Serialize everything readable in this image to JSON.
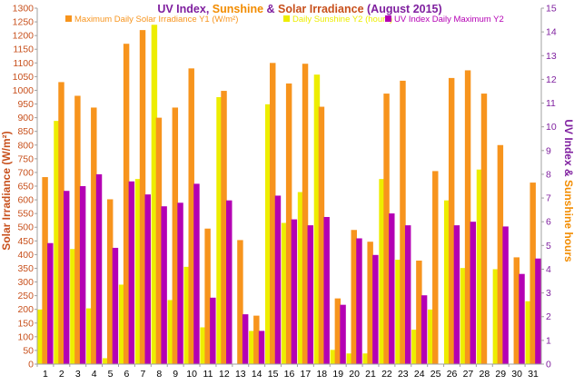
{
  "chart_data": {
    "type": "bar",
    "title_parts": [
      {
        "text": "UV Index",
        "color": "#7f1f9f"
      },
      {
        "text": ", ",
        "color": "#7f1f9f"
      },
      {
        "text": "Sunshine",
        "color": "#f28c00"
      },
      {
        "text": " & ",
        "color": "#7f1f9f"
      },
      {
        "text": "Solar Irradiance",
        "color": "#c8501c"
      },
      {
        "text": " (August 2015)",
        "color": "#7f1f9f"
      }
    ],
    "categories": [
      "1",
      "2",
      "3",
      "4",
      "5",
      "6",
      "7",
      "8",
      "9",
      "10",
      "11",
      "12",
      "13",
      "14",
      "15",
      "16",
      "17",
      "18",
      "19",
      "20",
      "21",
      "22",
      "23",
      "24",
      "25",
      "26",
      "27",
      "28",
      "29",
      "30",
      "31"
    ],
    "series": [
      {
        "name": "Maximum Daily Solar Irradiance Y1 (W/m²)",
        "axis": "left",
        "color": "#f7941d",
        "values": [
          683,
          1030,
          980,
          937,
          602,
          1170,
          1220,
          900,
          937,
          1080,
          495,
          998,
          453,
          177,
          1100,
          1025,
          1097,
          940,
          240,
          490,
          447,
          988,
          1035,
          378,
          705,
          1045,
          1073,
          988,
          800,
          390,
          663
        ]
      },
      {
        "name": "Daily Sunshine Y2 (hours)",
        "axis": "right",
        "color": "#eded00",
        "values": [
          2.3,
          10.25,
          4.85,
          2.35,
          0.25,
          3.35,
          7.8,
          14.3,
          2.7,
          4.1,
          1.55,
          11.25,
          0,
          1.4,
          10.95,
          5.95,
          7.25,
          12.2,
          0.6,
          0.45,
          0.45,
          7.8,
          4.4,
          1.45,
          2.3,
          6.9,
          4.05,
          8.2,
          4.0,
          0,
          2.65
        ]
      },
      {
        "name": "UV Index Daily Maximum Y2",
        "axis": "right",
        "color": "#b400b4",
        "values": [
          5.1,
          7.3,
          7.5,
          8.0,
          4.9,
          7.7,
          7.15,
          6.65,
          6.8,
          7.6,
          2.8,
          6.9,
          2.1,
          1.4,
          7.1,
          6.1,
          5.85,
          6.2,
          2.5,
          5.3,
          4.6,
          6.35,
          5.85,
          2.9,
          0,
          5.85,
          6.0,
          0,
          5.8,
          3.8,
          4.45
        ]
      }
    ],
    "ylabel_left": "Solar Irradiance (W/m²)",
    "ylabel_right_parts": [
      {
        "text": "UV Index",
        "color": "#7f1f9f"
      },
      {
        "text": " & ",
        "color": "#7f1f9f"
      },
      {
        "text": "Sunshine hours",
        "color": "#f28c00"
      }
    ],
    "ylim_left": [
      0,
      1300
    ],
    "yticks_left": [
      0,
      50,
      100,
      150,
      200,
      250,
      300,
      350,
      400,
      450,
      500,
      550,
      600,
      650,
      700,
      750,
      800,
      850,
      900,
      950,
      1000,
      1050,
      1100,
      1150,
      1200,
      1250,
      1300
    ],
    "ylim_right": [
      0,
      15
    ],
    "yticks_right": [
      0,
      1,
      2,
      3,
      4,
      5,
      6,
      7,
      8,
      9,
      10,
      11,
      12,
      13,
      14,
      15
    ],
    "left_axis_color": "#c8501c",
    "right_axis_color": "#7f1f9f",
    "grid": false,
    "legend_position": "top"
  }
}
